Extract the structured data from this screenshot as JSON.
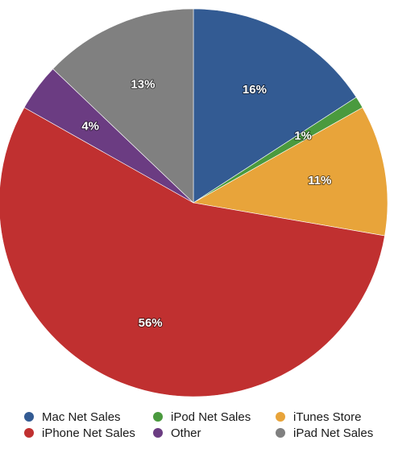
{
  "chart_data": {
    "type": "pie",
    "title": "",
    "start_angle_deg": 0,
    "direction": "clockwise",
    "series": [
      {
        "name": "Mac Net Sales",
        "value": 16,
        "label": "16%",
        "color": "#335b93"
      },
      {
        "name": "iPod Net Sales",
        "value": 1,
        "label": "1%",
        "color": "#4a9a3e"
      },
      {
        "name": "iTunes Store",
        "value": 11,
        "label": "11%",
        "color": "#e8a43a"
      },
      {
        "name": "iPhone Net Sales",
        "value": 56,
        "label": "56%",
        "color": "#c03030"
      },
      {
        "name": "Other",
        "value": 4,
        "label": "4%",
        "color": "#6b3c82"
      },
      {
        "name": "iPad Net Sales",
        "value": 13,
        "label": "13%",
        "color": "#808080"
      }
    ],
    "legend": {
      "placement": "bottom",
      "columns": 3,
      "order": [
        "Mac Net Sales",
        "iPod Net Sales",
        "iTunes Store",
        "iPhone Net Sales",
        "Other",
        "iPad Net Sales"
      ]
    }
  }
}
